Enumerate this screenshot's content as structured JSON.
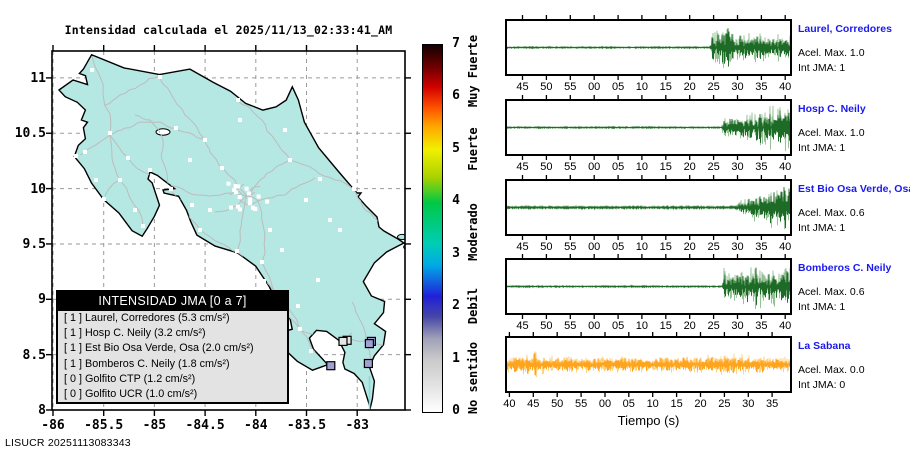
{
  "watermark": "LISUCR 20251113083343",
  "map": {
    "title": "Intensidad calculada el 2025/11/13_02:33:41_AM",
    "x_tick_labels": [
      "-86",
      "-85.5",
      "-85",
      "-84.5",
      "-84",
      "-83.5",
      "-83"
    ],
    "y_tick_labels": [
      "8",
      "8.5",
      "9",
      "9.5",
      "10",
      "10.5",
      "11"
    ],
    "legend_header": "INTENSIDAD JMA [0 a 7]",
    "land_color": "#b5e8e3",
    "road_color": "#bcbcbc",
    "grid_color": "#9a9a9a",
    "intensity_marker_colors": {
      "0": "#e6e6e6",
      "1": "#a0a0d2"
    }
  },
  "colorbar": {
    "tick_labels": [
      "0",
      "1",
      "2",
      "3",
      "4",
      "5",
      "6",
      "7"
    ],
    "band_labels": [
      {
        "text": "No sentido",
        "value": 0.62
      },
      {
        "text": "Debil",
        "value": 2.0
      },
      {
        "text": "Moderado",
        "value": 3.42
      },
      {
        "text": "Fuerte",
        "value": 5.0
      },
      {
        "text": "Muy Fuerte",
        "value": 6.48
      }
    ],
    "gradient": [
      [
        0.0,
        "#ffffff"
      ],
      [
        0.09,
        "#dcdcdc"
      ],
      [
        0.143,
        "#cacaca"
      ],
      [
        0.2,
        "#a0a0b8"
      ],
      [
        0.26,
        "#4646a8"
      ],
      [
        0.315,
        "#2020d8"
      ],
      [
        0.4,
        "#00aae6"
      ],
      [
        0.46,
        "#00cdb4"
      ],
      [
        0.57,
        "#00c846"
      ],
      [
        0.64,
        "#aad200"
      ],
      [
        0.715,
        "#f0f000"
      ],
      [
        0.775,
        "#ffaa00"
      ],
      [
        0.83,
        "#ff5000"
      ],
      [
        0.885,
        "#d20000"
      ],
      [
        0.94,
        "#6e0000"
      ],
      [
        1.0,
        "#140000"
      ]
    ]
  },
  "chart_data": [
    {
      "type": "map",
      "title": "Intensidad calculada el 2025/11/13_02:33:41_AM",
      "region": "Costa Rica",
      "xlim": [
        -86.01,
        -82.53
      ],
      "ylim": [
        8.0,
        11.24
      ],
      "x_ticks": [
        -86,
        -85.5,
        -85,
        -84.5,
        -84,
        -83.5,
        -83
      ],
      "y_ticks": [
        8,
        8.5,
        9,
        9.5,
        10,
        10.5,
        11
      ],
      "colorbar_range": [
        0,
        7
      ],
      "stations": [
        {
          "jma": 1,
          "name": "Laurel, Corredores",
          "accel": "5.3 cm/s²",
          "lon": -82.89,
          "lat": 8.42
        },
        {
          "jma": 1,
          "name": "Hosp C. Neily",
          "accel": "3.2 cm/s²",
          "lon": -82.86,
          "lat": 8.62
        },
        {
          "jma": 1,
          "name": "Est Bio Osa Verde, Osa",
          "accel": "2.0 cm/s²",
          "lon": -83.26,
          "lat": 8.4
        },
        {
          "jma": 1,
          "name": "Bomberos C. Neily",
          "accel": "1.8 cm/s²",
          "lon": -82.88,
          "lat": 8.6
        },
        {
          "jma": 0,
          "name": "Golfito CTP",
          "accel": "1.2 cm/s²",
          "lon": -83.1,
          "lat": 8.63
        },
        {
          "jma": 0,
          "name": "Golfito UCR",
          "accel": "1.0 cm/s²",
          "lon": -83.14,
          "lat": 8.62
        }
      ]
    },
    {
      "type": "waveform",
      "station": "Laurel, Corredores",
      "accel_label": "Acel. Max. 1.0",
      "jma_label": "Int JMA: 1",
      "x_tick_labels": [
        "45",
        "50",
        "55",
        "00",
        "05",
        "10",
        "15",
        "20",
        "25",
        "30",
        "35",
        "40"
      ],
      "first_tick_frac": 0.058,
      "onset_frac": 0.715,
      "pre_amp": 0.8,
      "amp": 26,
      "envelope": [
        [
          0,
          0.06
        ],
        [
          0.02,
          0.5
        ],
        [
          0.05,
          0.9
        ],
        [
          0.12,
          0.62
        ],
        [
          0.2,
          0.96
        ],
        [
          0.24,
          1
        ],
        [
          0.3,
          0.62
        ],
        [
          0.42,
          0.68
        ],
        [
          0.5,
          0.52
        ],
        [
          0.6,
          0.62
        ],
        [
          0.72,
          0.5
        ],
        [
          0.82,
          0.58
        ],
        [
          0.92,
          0.48
        ],
        [
          1,
          0.52
        ]
      ],
      "color": "#1d6b26",
      "color_light": "#95c295",
      "xlabel": ""
    },
    {
      "type": "waveform",
      "station": "Hosp C. Neily",
      "accel_label": "Acel. Max. 1.0",
      "jma_label": "Int JMA: 1",
      "x_tick_labels": [
        "45",
        "50",
        "55",
        "00",
        "05",
        "10",
        "15",
        "20",
        "25",
        "30",
        "35",
        "40"
      ],
      "first_tick_frac": 0.058,
      "onset_frac": 0.755,
      "pre_amp": 0.8,
      "amp": 25,
      "envelope": [
        [
          0,
          0.08
        ],
        [
          0.03,
          0.42
        ],
        [
          0.15,
          0.48
        ],
        [
          0.3,
          0.55
        ],
        [
          0.45,
          0.7
        ],
        [
          0.58,
          0.9
        ],
        [
          0.68,
          1
        ],
        [
          0.78,
          0.8
        ],
        [
          0.88,
          0.95
        ],
        [
          1,
          0.85
        ]
      ],
      "color": "#1d6b26",
      "color_light": "#95c295",
      "xlabel": ""
    },
    {
      "type": "waveform",
      "station": "Est Bio Osa Verde, Osa",
      "accel_label": "Acel. Max. 0.6",
      "jma_label": "Int JMA: 1",
      "x_tick_labels": [
        "45",
        "50",
        "55",
        "00",
        "05",
        "10",
        "15",
        "20",
        "25",
        "30",
        "35",
        "40"
      ],
      "first_tick_frac": 0.058,
      "onset_frac": 0.8,
      "pre_amp": 1.4,
      "amp": 26,
      "envelope": [
        [
          0,
          0.08
        ],
        [
          0.08,
          0.22
        ],
        [
          0.2,
          0.35
        ],
        [
          0.35,
          0.55
        ],
        [
          0.5,
          0.65
        ],
        [
          0.65,
          0.8
        ],
        [
          0.8,
          0.9
        ],
        [
          0.95,
          1
        ],
        [
          1,
          0.95
        ]
      ],
      "color": "#1d6b26",
      "color_light": "#95c295",
      "xlabel": ""
    },
    {
      "type": "waveform",
      "station": "Bomberos C. Neily",
      "accel_label": "Acel. Max. 0.6",
      "jma_label": "Int JMA: 1",
      "x_tick_labels": [
        "45",
        "50",
        "55",
        "00",
        "05",
        "10",
        "15",
        "20",
        "25",
        "30",
        "35",
        "40"
      ],
      "first_tick_frac": 0.058,
      "onset_frac": 0.76,
      "pre_amp": 0.8,
      "amp": 24,
      "envelope": [
        [
          0,
          0.08
        ],
        [
          0.02,
          0.75
        ],
        [
          0.12,
          0.65
        ],
        [
          0.25,
          0.72
        ],
        [
          0.38,
          0.85
        ],
        [
          0.5,
          1
        ],
        [
          0.62,
          0.7
        ],
        [
          0.75,
          0.95
        ],
        [
          0.88,
          0.8
        ],
        [
          1,
          0.85
        ]
      ],
      "color": "#1d6b26",
      "color_light": "#95c295",
      "xlabel": ""
    },
    {
      "type": "waveform",
      "station": "La Sabana",
      "accel_label": "Acel. Max. 0.0",
      "jma_label": "Int JMA: 0",
      "x_tick_labels": [
        "40",
        "45",
        "50",
        "55",
        "00",
        "05",
        "10",
        "15",
        "20",
        "25",
        "30",
        "35"
      ],
      "first_tick_frac": 0.012,
      "onset_frac": 0.0,
      "pre_amp": 0,
      "amp": 17,
      "envelope": [
        [
          0,
          0.5
        ],
        [
          0.06,
          0.65
        ],
        [
          0.1,
          1
        ],
        [
          0.13,
          0.55
        ],
        [
          0.25,
          0.48
        ],
        [
          0.4,
          0.52
        ],
        [
          0.55,
          0.5
        ],
        [
          0.7,
          0.55
        ],
        [
          0.82,
          0.75
        ],
        [
          0.9,
          0.55
        ],
        [
          1,
          0.5
        ]
      ],
      "color": "#ffa41e",
      "color_light": "#ffd27f",
      "xlabel": "Tiempo (s)"
    }
  ]
}
